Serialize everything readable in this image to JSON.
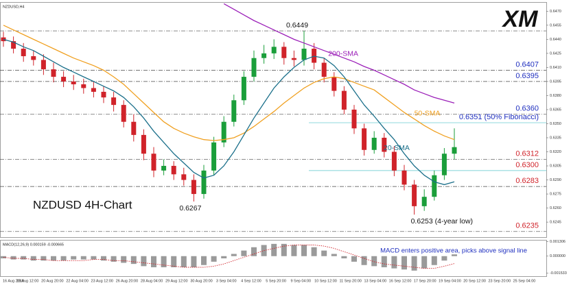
{
  "chart_data": {
    "type": "candlestick",
    "title": "NZDUSD,H4",
    "label": "NZDUSD 4H-Chart",
    "logo": "XM",
    "up_color": "#1a9e3a",
    "down_color": "#d0232a",
    "open": [
      0.6442,
      0.6438,
      0.643,
      0.6422,
      0.6418,
      0.6408,
      0.64,
      0.6395,
      0.6392,
      0.6388,
      0.6384,
      0.6378,
      0.637,
      0.6352,
      0.6338,
      0.6318,
      0.63,
      0.6305,
      0.6296,
      0.629,
      0.6275,
      0.63,
      0.633,
      0.6352,
      0.6375,
      0.64,
      0.642,
      0.6425,
      0.6432,
      0.642,
      0.6418,
      0.643,
      0.6415,
      0.64,
      0.6385,
      0.6365,
      0.6345,
      0.6322,
      0.6335,
      0.632,
      0.63,
      0.6285,
      0.6262,
      0.6272,
      0.6295,
      0.6318
    ],
    "high": [
      0.6448,
      0.6443,
      0.6436,
      0.6428,
      0.6424,
      0.6415,
      0.6406,
      0.6402,
      0.6398,
      0.6395,
      0.639,
      0.6384,
      0.6375,
      0.636,
      0.6344,
      0.6325,
      0.6312,
      0.631,
      0.6303,
      0.6296,
      0.6306,
      0.6336,
      0.6358,
      0.6381,
      0.6406,
      0.6428,
      0.6434,
      0.644,
      0.6437,
      0.6428,
      0.6449,
      0.6436,
      0.642,
      0.6405,
      0.639,
      0.637,
      0.635,
      0.6342,
      0.634,
      0.6326,
      0.6306,
      0.629,
      0.628,
      0.63,
      0.6324,
      0.6345
    ],
    "low": [
      0.6432,
      0.6425,
      0.6416,
      0.6412,
      0.6402,
      0.6394,
      0.6389,
      0.6386,
      0.6382,
      0.6378,
      0.6372,
      0.6363,
      0.6346,
      0.6331,
      0.6311,
      0.6293,
      0.6295,
      0.629,
      0.6284,
      0.6267,
      0.627,
      0.6295,
      0.6325,
      0.6347,
      0.637,
      0.6395,
      0.6414,
      0.6419,
      0.6413,
      0.6411,
      0.6412,
      0.6408,
      0.6394,
      0.6379,
      0.636,
      0.6339,
      0.6316,
      0.6318,
      0.6314,
      0.6294,
      0.6279,
      0.6253,
      0.6257,
      0.6268,
      0.629,
      0.6312
    ],
    "close": [
      0.6438,
      0.643,
      0.6422,
      0.6418,
      0.6408,
      0.64,
      0.6395,
      0.6392,
      0.6388,
      0.6384,
      0.6378,
      0.637,
      0.6352,
      0.6338,
      0.6318,
      0.63,
      0.6305,
      0.6296,
      0.629,
      0.6275,
      0.63,
      0.633,
      0.6352,
      0.6375,
      0.64,
      0.642,
      0.6425,
      0.6432,
      0.642,
      0.6418,
      0.643,
      0.6415,
      0.64,
      0.6385,
      0.6365,
      0.6345,
      0.6322,
      0.6335,
      0.632,
      0.63,
      0.6285,
      0.6262,
      0.6272,
      0.6295,
      0.6318,
      0.6325
    ],
    "series": [
      {
        "name": "200-SMA",
        "color": "#9b1fb8",
        "values": [
          null,
          null,
          null,
          null,
          null,
          null,
          null,
          null,
          null,
          null,
          null,
          null,
          null,
          null,
          null,
          null,
          null,
          null,
          null,
          null,
          null,
          null,
          0.6478,
          0.6472,
          0.6466,
          0.646,
          0.6455,
          0.645,
          0.6445,
          0.644,
          0.6436,
          0.6432,
          0.6428,
          0.6424,
          0.642,
          0.6416,
          0.6411,
          0.6407,
          0.6402,
          0.6397,
          0.6392,
          0.6386,
          0.6382,
          0.6378,
          0.6375,
          0.6372
        ]
      },
      {
        "name": "50-SMA",
        "color": "#f0a020",
        "values": [
          0.6455,
          0.645,
          0.6445,
          0.644,
          0.6435,
          0.643,
          0.6425,
          0.642,
          0.6416,
          0.6412,
          0.6407,
          0.64,
          0.6392,
          0.6382,
          0.6372,
          0.6362,
          0.6352,
          0.6345,
          0.634,
          0.6336,
          0.6333,
          0.6332,
          0.6333,
          0.6335,
          0.634,
          0.6347,
          0.6355,
          0.6363,
          0.6372,
          0.638,
          0.6388,
          0.6394,
          0.6398,
          0.64,
          0.6398,
          0.6394,
          0.639,
          0.6386,
          0.6378,
          0.637,
          0.6362,
          0.6355,
          0.6348,
          0.6342,
          0.6337,
          0.6333
        ]
      },
      {
        "name": "20-SMA",
        "color": "#1a6f8a",
        "values": [
          0.644,
          0.6437,
          0.6432,
          0.6428,
          0.6422,
          0.6416,
          0.641,
          0.6405,
          0.64,
          0.6395,
          0.639,
          0.6385,
          0.6378,
          0.6368,
          0.6356,
          0.6342,
          0.633,
          0.6318,
          0.6308,
          0.6298,
          0.6292,
          0.6295,
          0.6305,
          0.632,
          0.6338,
          0.6356,
          0.6372,
          0.6388,
          0.64,
          0.641,
          0.6418,
          0.6422,
          0.642,
          0.6412,
          0.64,
          0.6385,
          0.637,
          0.6358,
          0.6345,
          0.6333,
          0.6318,
          0.6305,
          0.6295,
          0.6288,
          0.6285,
          0.6288
        ]
      }
    ],
    "levels": [
      {
        "value": 0.6449,
        "color": "#333333",
        "style": "dashdot"
      },
      {
        "value": 0.6407,
        "label": "0.6407",
        "color": "#1f2fbf",
        "style": "dashdot"
      },
      {
        "value": 0.6395,
        "label": "0.6395",
        "color": "#1f2fbf",
        "style": "dashdot"
      },
      {
        "value": 0.636,
        "label": "0.6360",
        "color": "#1f2fbf",
        "style": "dashdot"
      },
      {
        "value": 0.6351,
        "label": "0.6351 (50% Fibonacci)",
        "color": "#1f2fbf",
        "style": "solid"
      },
      {
        "value": 0.6312,
        "label": "0.6312",
        "color": "#d0232a",
        "style": "dashdot"
      },
      {
        "value": 0.63,
        "label": "0.6300",
        "color": "#d0232a",
        "style": "solid"
      },
      {
        "value": 0.6283,
        "label": "0.6283",
        "color": "#d0232a",
        "style": "dashdot"
      },
      {
        "value": 0.6235,
        "label": "0.6235",
        "color": "#d0232a",
        "style": "dashdot"
      }
    ],
    "extremes": [
      {
        "value": 0.6449,
        "label": "0.6449"
      },
      {
        "value": 0.6267,
        "label": "0.6267"
      },
      {
        "value": 0.6253,
        "label": "0.6253 (4-year low)"
      }
    ],
    "ylim": [
      0.6229,
      0.6479
    ],
    "yticks": [
      0.6245,
      {
        "value": 0.626,
        "label": "0.6260"
      },
      0.6275,
      {
        "value": 0.629,
        "label": "0.6290"
      },
      0.6305,
      {
        "value": 0.632,
        "label": "0.6320"
      },
      0.6335,
      {
        "value": 0.635,
        "label": "0.6350"
      },
      0.6365,
      {
        "value": 0.638,
        "label": "0.6380"
      },
      0.6395,
      {
        "value": 0.641,
        "label": "0.6410"
      },
      0.6425,
      {
        "value": 0.644,
        "label": "0.6440"
      },
      0.6455,
      {
        "value": 0.647,
        "label": "0.6470"
      }
    ],
    "xtick_labels": [
      "16 Aug 2019",
      "19 Aug 12:00",
      "20 Aug 20:00",
      "22 Aug 04:00",
      "23 Aug 12:00",
      "26 Aug 20:00",
      "28 Aug 04:00",
      "29 Aug 12:00",
      "30 Aug 20:00",
      "3 Sep 04:00",
      "4 Sep 12:00",
      "5 Sep 20:00",
      "9 Sep 04:00",
      "10 Sep 12:00",
      "11 Sep 20:00",
      "13 Sep 04:00",
      "16 Sep 12:00",
      "17 Sep 20:00",
      "19 Sep 04:00",
      "20 Sep 12:00",
      "23 Sep 20:00",
      "25 Sep 04:00"
    ],
    "macd": {
      "title": "MACD(12,26,9) 0.000159 -0.000665",
      "annotation": "MACD enters positive area, picks above signal line",
      "values": [
        -0.0002,
        -0.0003,
        -0.0003,
        -0.0004,
        -0.0004,
        -0.0004,
        -0.0004,
        -0.0003,
        -0.0003,
        -0.0003,
        -0.0004,
        -0.0005,
        -0.0006,
        -0.0007,
        -0.0009,
        -0.001,
        -0.001,
        -0.001,
        -0.001,
        -0.001,
        -0.0008,
        -0.0005,
        -0.0002,
        0.0002,
        0.0005,
        0.0008,
        0.001,
        0.0011,
        0.0011,
        0.001,
        0.001,
        0.0008,
        0.0005,
        0.0002,
        -0.0002,
        -0.0005,
        -0.0008,
        -0.0009,
        -0.001,
        -0.0011,
        -0.0012,
        -0.0013,
        -0.0011,
        -0.0008,
        -0.0004,
        0.000159
      ],
      "signal": [
        -0.0001,
        -0.0002,
        -0.0002,
        -0.0003,
        -0.0003,
        -0.0004,
        -0.0004,
        -0.0004,
        -0.0004,
        -0.0003,
        -0.0003,
        -0.0004,
        -0.0004,
        -0.0005,
        -0.0006,
        -0.0007,
        -0.0008,
        -0.0009,
        -0.001,
        -0.001,
        -0.001,
        -0.0009,
        -0.0007,
        -0.0004,
        -0.0001,
        0.0002,
        0.0005,
        0.0007,
        0.0009,
        0.001,
        0.001,
        0.001,
        0.0009,
        0.0007,
        0.0004,
        0.0001,
        -0.0002,
        -0.0005,
        -0.0007,
        -0.0008,
        -0.0009,
        -0.001,
        -0.0011,
        -0.0011,
        -0.0009,
        -0.000665
      ],
      "hist_color": "#9a9a9a",
      "signal_color": "#d0232a",
      "y2lim": [
        -0.0018,
        0.0014
      ],
      "y2ticks": [
        0.001306,
        {
          "value": 0,
          "label": "0.000000"
        },
        -0.001533
      ]
    }
  }
}
